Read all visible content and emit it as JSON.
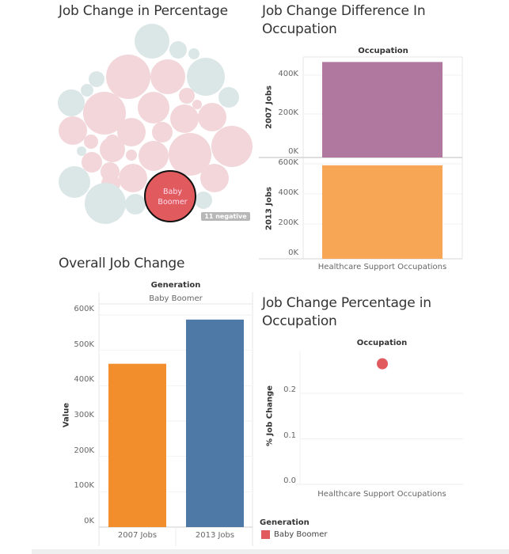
{
  "colors": {
    "bubble_positive": "#f2d6d9",
    "bubble_negative": "#dbe6e7",
    "bubble_highlight": "#e05a5e",
    "bar_2007_purple": "#b0789f",
    "bar_2013_orange": "#f7a655",
    "overall_2007": "#f28e2c",
    "overall_2013": "#4e79a7",
    "scatter_dot": "#e05a5e",
    "legend_baby_boomer": "#e05a5e"
  },
  "chart_data": [
    {
      "id": "bubble",
      "type": "bubble",
      "title": "Job Change in Percentage",
      "highlight_label_line1": "Baby",
      "highlight_label_line2": "Boomer",
      "badge": "11 negative"
    },
    {
      "id": "occupation_bars",
      "type": "bar",
      "title_line1": "Job Change Difference In",
      "title_line2": "Occupation",
      "column_header": "Occupation",
      "categories": [
        "Healthcare Support Occupations"
      ],
      "panels": [
        {
          "ylabel": "2007 Jobs",
          "values": [
            468000
          ],
          "ylim": [
            0,
            480000
          ],
          "ticks": [
            "400K",
            "200K",
            "0K"
          ],
          "tick_values": [
            400000,
            200000,
            0
          ]
        },
        {
          "ylabel": "2013 Jobs",
          "values": [
            590000
          ],
          "ylim": [
            0,
            600000
          ],
          "ticks": [
            "600K",
            "400K",
            "200K",
            "0K"
          ],
          "tick_values": [
            600000,
            400000,
            200000,
            0
          ]
        }
      ]
    },
    {
      "id": "overall",
      "type": "bar",
      "title": "Overall Job Change",
      "column_header": "Generation",
      "sub_header": "Baby Boomer",
      "ylabel": "Value",
      "categories": [
        "2007 Jobs",
        "2013 Jobs"
      ],
      "values": [
        462000,
        587000
      ],
      "ylim": [
        0,
        600000
      ],
      "ticks": [
        "600K",
        "500K",
        "400K",
        "300K",
        "200K",
        "100K",
        "0K"
      ],
      "tick_values": [
        600000,
        500000,
        400000,
        300000,
        200000,
        100000,
        0
      ]
    },
    {
      "id": "scatter",
      "type": "scatter",
      "title_line1": "Job Change Percentage in",
      "title_line2": "Occupation",
      "column_header": "Occupation",
      "ylabel": "% Job Change",
      "categories": [
        "Healthcare Support Occupations"
      ],
      "values": [
        0.265
      ],
      "ticks": [
        "0.2",
        "0.1",
        "0.0"
      ],
      "tick_values": [
        0.2,
        0.1,
        0.0
      ]
    }
  ],
  "legend": {
    "title": "Generation",
    "items": [
      {
        "label": "Baby Boomer"
      }
    ]
  }
}
